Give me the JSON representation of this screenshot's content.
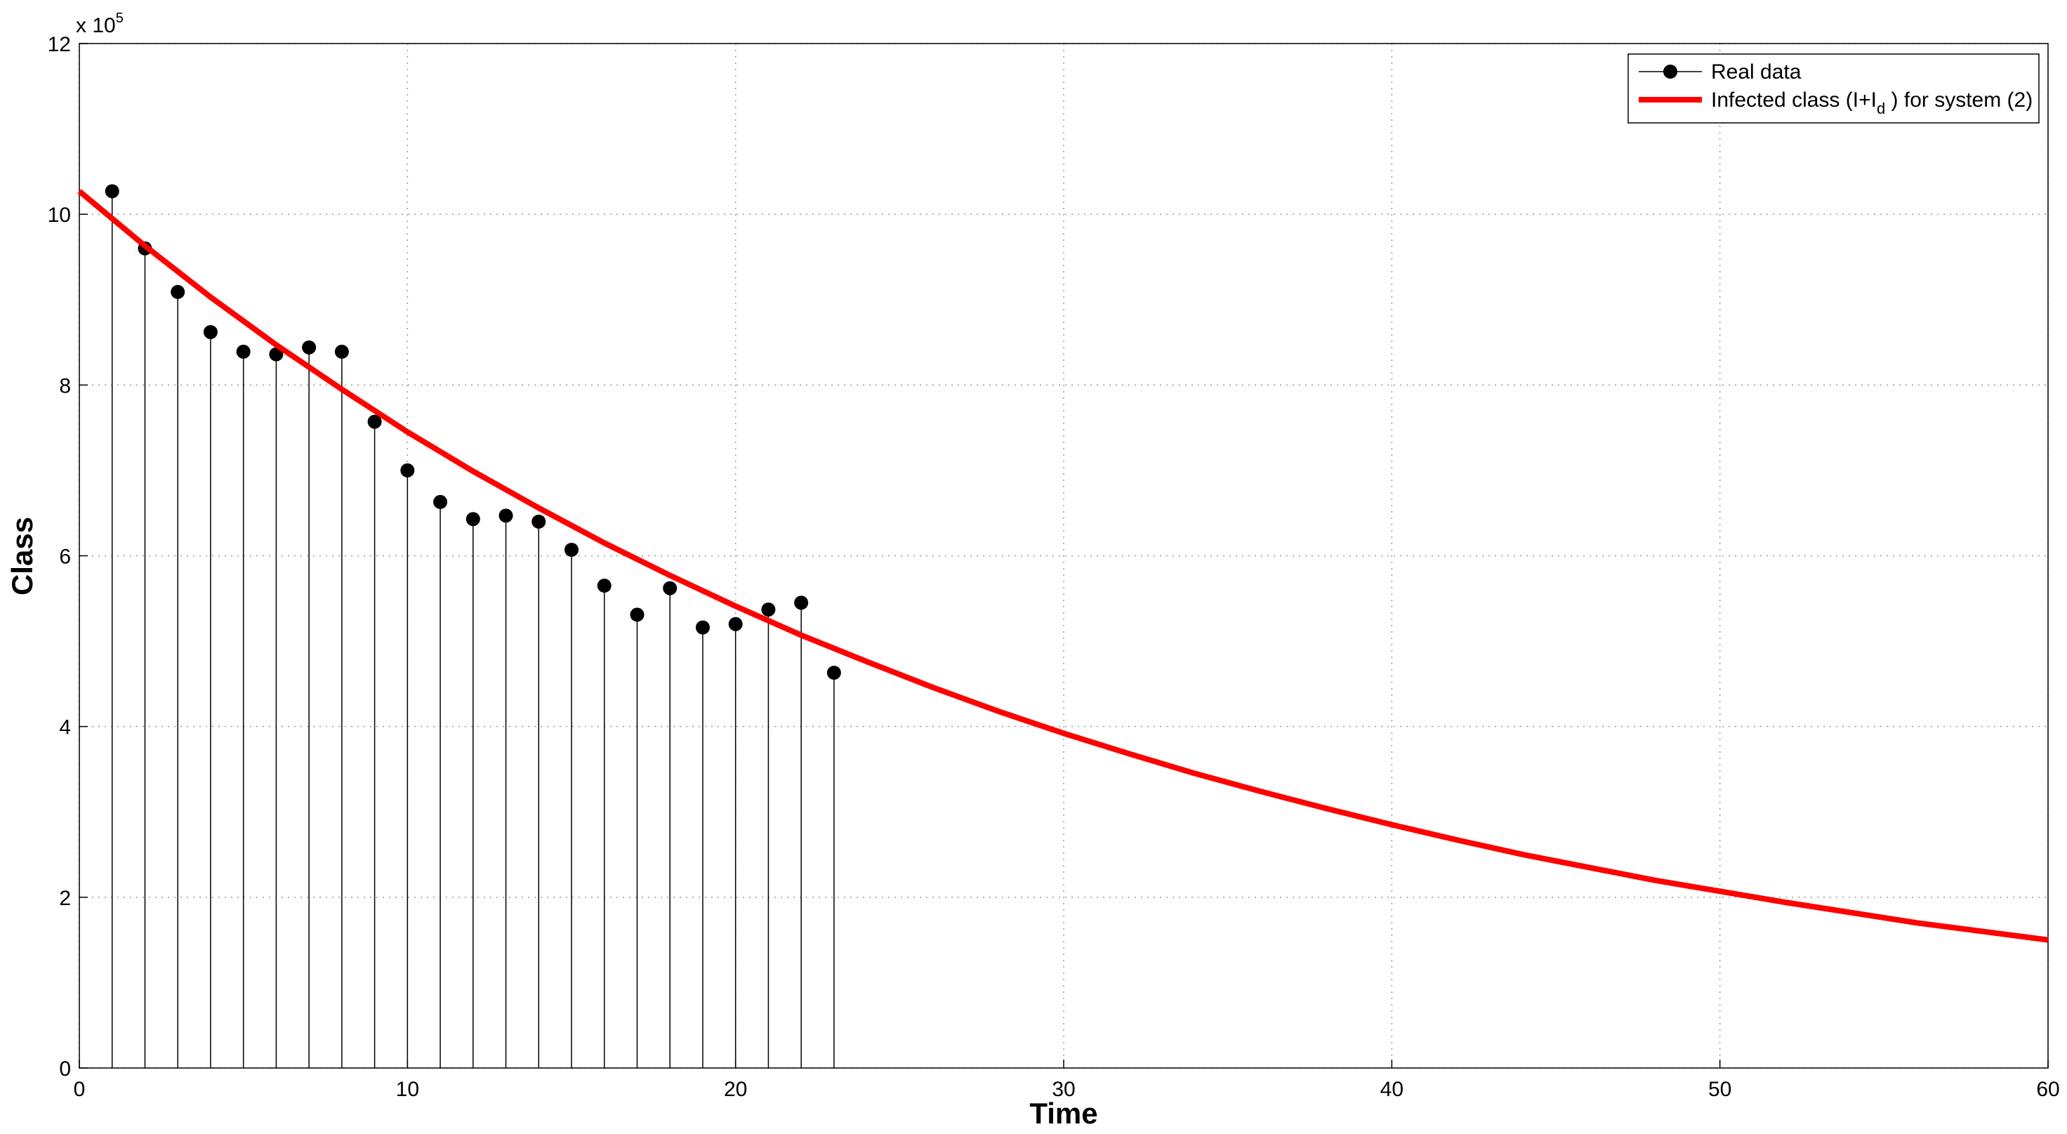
{
  "chart_data": {
    "type": "stem_line",
    "xlabel": "Time",
    "ylabel": "Class",
    "y_multiplier": "x 10",
    "y_multiplier_exp": "5",
    "xlim": [
      0,
      60
    ],
    "xticks": [
      0,
      10,
      20,
      30,
      40,
      50,
      60
    ],
    "ylim": [
      0,
      12
    ],
    "yticks": [
      0,
      2,
      4,
      6,
      8,
      10,
      12
    ],
    "grid": true,
    "legend": "upper right",
    "series": [
      {
        "name": "Real data",
        "kind": "stem",
        "color": "#000000",
        "x": [
          1,
          2,
          3,
          4,
          5,
          6,
          7,
          8,
          9,
          10,
          11,
          12,
          13,
          14,
          15,
          16,
          17,
          18,
          19,
          20,
          21,
          22,
          23
        ],
        "values": [
          10.27,
          9.6,
          9.09,
          8.62,
          8.39,
          8.36,
          8.44,
          8.39,
          7.57,
          7.0,
          6.63,
          6.43,
          6.47,
          6.4,
          6.07,
          5.65,
          5.31,
          5.62,
          5.16,
          5.2,
          5.37,
          5.45,
          4.63
        ]
      },
      {
        "name": "Infected class (I+I",
        "name_subscript": "d",
        "name_rest": " ) for system (2)",
        "kind": "line",
        "color": "#ff0000",
        "x": [
          0,
          2,
          4,
          6,
          8,
          10,
          12,
          14,
          16,
          18,
          20,
          22,
          24,
          26,
          28,
          30,
          32,
          34,
          36,
          38,
          40,
          42,
          44,
          46,
          48,
          50,
          52,
          54,
          56,
          58,
          60
        ],
        "values": [
          10.27,
          9.63,
          9.03,
          8.47,
          7.95,
          7.45,
          6.99,
          6.56,
          6.15,
          5.77,
          5.41,
          5.07,
          4.76,
          4.46,
          4.18,
          3.92,
          3.68,
          3.45,
          3.24,
          3.04,
          2.85,
          2.67,
          2.5,
          2.35,
          2.2,
          2.07,
          1.94,
          1.82,
          1.7,
          1.6,
          1.5
        ]
      }
    ]
  }
}
